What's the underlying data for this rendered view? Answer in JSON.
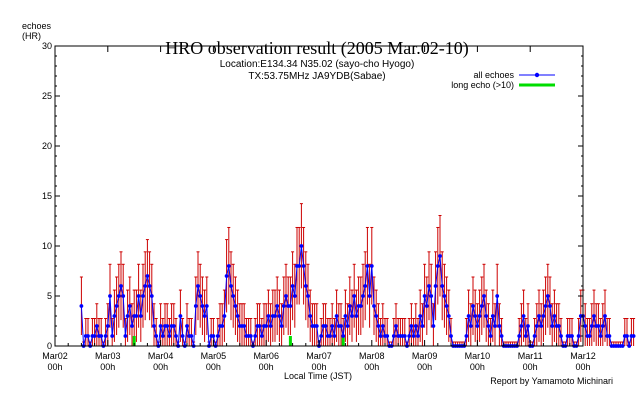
{
  "chart_data": {
    "type": "line",
    "title": "HRO observation result (2005 Mar.02-10)",
    "subtitle_lines": [
      "Location:E134.34 N35.02 (sayo-cho Hyogo)",
      "TX:53.75MHz JA9YDB(Sabae)"
    ],
    "ylabel_lines": [
      "echoes",
      "(HR)"
    ],
    "xlabel": "Local Time (JST)",
    "credit": "Report by Yamamoto Michinari",
    "xlim": [
      0,
      240
    ],
    "ylim": [
      0,
      30
    ],
    "grid": false,
    "legend_position": "top-right",
    "y_ticks": [
      "0",
      "5",
      "10",
      "15",
      "20",
      "25",
      "30"
    ],
    "x_ticks": [
      {
        "top": "Mar02",
        "bottom": "00h"
      },
      {
        "top": "Mar03",
        "bottom": "00h"
      },
      {
        "top": "Mar04",
        "bottom": "00h"
      },
      {
        "top": "Mar05",
        "bottom": "00h"
      },
      {
        "top": "Mar06",
        "bottom": "00h"
      },
      {
        "top": "Mar07",
        "bottom": "00h"
      },
      {
        "top": "Mar08",
        "bottom": "00h"
      },
      {
        "top": "Mar09",
        "bottom": "00h"
      },
      {
        "top": "Mar10",
        "bottom": "00h"
      },
      {
        "top": "Mar11",
        "bottom": "00h"
      },
      {
        "top": "Mar12",
        "bottom": "00h"
      }
    ],
    "x_units": "hours since Mar02 00h",
    "colors": {
      "all_echoes": "#0000ff",
      "error_bars": "#cc0000",
      "long_echo": "#00dd00",
      "axis": "#000000"
    },
    "series": [
      {
        "name": "all echoes",
        "x_start": 12,
        "x_step": 1,
        "values": [
          4,
          0,
          1,
          1,
          0,
          1,
          1,
          2,
          1,
          1,
          0,
          1,
          2,
          5,
          1,
          3,
          4,
          5,
          6,
          5,
          1,
          3,
          4,
          2,
          3,
          3,
          5,
          3,
          5,
          6,
          7,
          6,
          5,
          2,
          1,
          0,
          2,
          1,
          2,
          2,
          1,
          2,
          2,
          1,
          0,
          3,
          1,
          0,
          2,
          1,
          1,
          0,
          4,
          6,
          5,
          4,
          3,
          4,
          0,
          1,
          1,
          0,
          1,
          2,
          2,
          3,
          7,
          8,
          6,
          5,
          4,
          3,
          2,
          2,
          2,
          1,
          1,
          1,
          0,
          1,
          2,
          2,
          1,
          2,
          2,
          3,
          2,
          3,
          3,
          4,
          3,
          2,
          4,
          5,
          4,
          4,
          6,
          5,
          8,
          8,
          10,
          8,
          6,
          5,
          3,
          2,
          2,
          2,
          0,
          1,
          2,
          2,
          1,
          1,
          2,
          1,
          3,
          2,
          2,
          1,
          3,
          2,
          4,
          3,
          5,
          3,
          4,
          4,
          5,
          6,
          8,
          5,
          8,
          4,
          3,
          2,
          1,
          2,
          1,
          1,
          0,
          0,
          1,
          2,
          1,
          1,
          1,
          1,
          0,
          1,
          2,
          1,
          2,
          1,
          3,
          2,
          5,
          4,
          6,
          5,
          2,
          6,
          8,
          9,
          6,
          5,
          4,
          3,
          1,
          0,
          0,
          0,
          0,
          0,
          0,
          1,
          3,
          2,
          4,
          3,
          2,
          3,
          4,
          5,
          3,
          2,
          1,
          3,
          2,
          5,
          2,
          1,
          0,
          0,
          0,
          0,
          0,
          0,
          0,
          1,
          2,
          3,
          1,
          2,
          0,
          0,
          1,
          2,
          3,
          2,
          3,
          4,
          5,
          4,
          2,
          3,
          2,
          2,
          1,
          0,
          0,
          1,
          1,
          1,
          0,
          0,
          1,
          3,
          3,
          2,
          1,
          1,
          2,
          3,
          2,
          2,
          1,
          2,
          3,
          1,
          1,
          0,
          0,
          0,
          0,
          0,
          0,
          1,
          1,
          0,
          1,
          1
        ]
      },
      {
        "name": "long echo (>10)",
        "x": [
          36,
          107,
          131
        ],
        "values": [
          1,
          1,
          1
        ]
      }
    ]
  }
}
